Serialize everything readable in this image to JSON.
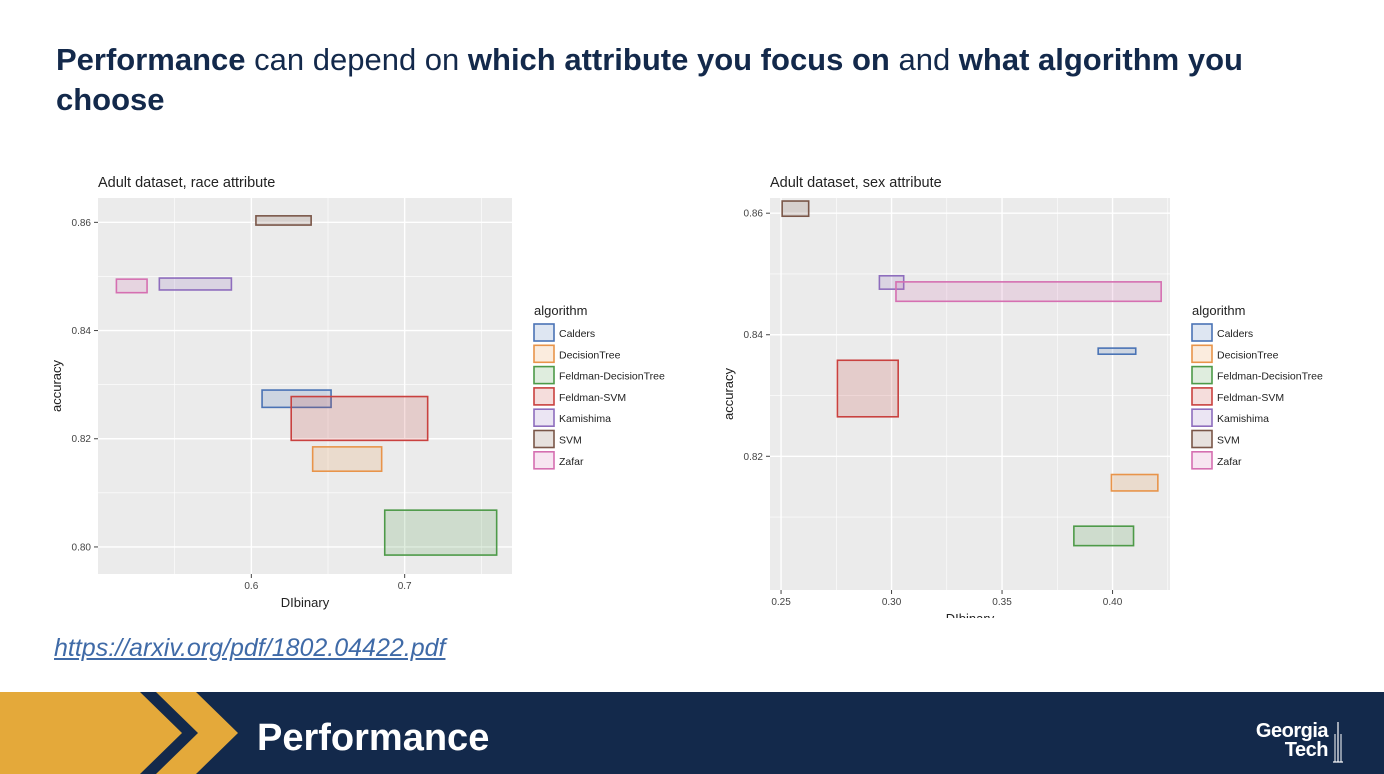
{
  "headline": {
    "p1": "Performance",
    "p2": " can depend on ",
    "p3": "which attribute you focus on",
    "p4": " and ",
    "p5": "what algorithm you choose"
  },
  "link": "https://arxiv.org/pdf/1802.04422.pdf",
  "footer": {
    "title": "Performance",
    "logo_line1": "Georgia",
    "logo_line2": "Tech",
    "colors": {
      "navy": "#13294b",
      "gold": "#e4a93a"
    }
  },
  "chart_data": [
    {
      "type": "rect-range",
      "title": "Adult dataset, race attribute",
      "xlabel": "DIbinary",
      "ylabel": "accuracy",
      "xlim": [
        0.5,
        0.77
      ],
      "ylim": [
        0.795,
        0.8645
      ],
      "xticks": [
        0.6,
        0.7
      ],
      "xtick_labels": [
        "0.6",
        "0.7"
      ],
      "yticks": [
        0.8,
        0.82,
        0.84,
        0.86
      ],
      "ytick_labels": [
        "0.80",
        "0.82",
        "0.84",
        "0.86"
      ],
      "legend": {
        "title": "algorithm",
        "position": "right"
      },
      "series": [
        {
          "name": "Calders",
          "x": [
            0.607,
            0.652
          ],
          "y": [
            0.8258,
            0.829
          ],
          "color": "#4a73b5"
        },
        {
          "name": "DecisionTree",
          "x": [
            0.64,
            0.685
          ],
          "y": [
            0.814,
            0.8185
          ],
          "color": "#e8944a"
        },
        {
          "name": "Feldman-DecisionTree",
          "x": [
            0.687,
            0.76
          ],
          "y": [
            0.7985,
            0.8068
          ],
          "color": "#4d9a48"
        },
        {
          "name": "Feldman-SVM",
          "x": [
            0.626,
            0.715
          ],
          "y": [
            0.8197,
            0.8278
          ],
          "color": "#c9413f"
        },
        {
          "name": "Kamishima",
          "x": [
            0.54,
            0.587
          ],
          "y": [
            0.8475,
            0.8497
          ],
          "color": "#8e6dbd"
        },
        {
          "name": "SVM",
          "x": [
            0.603,
            0.639
          ],
          "y": [
            0.8595,
            0.8612
          ],
          "color": "#7a5648"
        },
        {
          "name": "Zafar",
          "x": [
            0.512,
            0.532
          ],
          "y": [
            0.847,
            0.8495
          ],
          "color": "#d56fb1"
        }
      ]
    },
    {
      "type": "rect-range",
      "title": "Adult dataset, sex attribute",
      "xlabel": "DIbinary",
      "ylabel": "accuracy",
      "xlim": [
        0.245,
        0.426
      ],
      "ylim": [
        0.798,
        0.8625
      ],
      "xticks": [
        0.25,
        0.3,
        0.35,
        0.4
      ],
      "xtick_labels": [
        "0.25",
        "0.30",
        "0.35",
        "0.40"
      ],
      "yticks": [
        0.82,
        0.84,
        0.86
      ],
      "ytick_labels": [
        "0.82",
        "0.84",
        "0.86"
      ],
      "legend": {
        "title": "algorithm",
        "position": "right"
      },
      "series": [
        {
          "name": "Calders",
          "x": [
            0.3935,
            0.4105
          ],
          "y": [
            0.8368,
            0.8378
          ],
          "color": "#4a73b5"
        },
        {
          "name": "DecisionTree",
          "x": [
            0.3995,
            0.4205
          ],
          "y": [
            0.8143,
            0.817
          ],
          "color": "#e8944a"
        },
        {
          "name": "Feldman-DecisionTree",
          "x": [
            0.3825,
            0.4095
          ],
          "y": [
            0.8053,
            0.8085
          ],
          "color": "#4d9a48"
        },
        {
          "name": "Feldman-SVM",
          "x": [
            0.2755,
            0.303
          ],
          "y": [
            0.8265,
            0.8358
          ],
          "color": "#c9413f"
        },
        {
          "name": "Kamishima",
          "x": [
            0.2945,
            0.3055
          ],
          "y": [
            0.8475,
            0.8497
          ],
          "color": "#8e6dbd"
        },
        {
          "name": "SVM",
          "x": [
            0.2505,
            0.2625
          ],
          "y": [
            0.8595,
            0.862
          ],
          "color": "#7a5648"
        },
        {
          "name": "Zafar",
          "x": [
            0.302,
            0.422
          ],
          "y": [
            0.8455,
            0.8487
          ],
          "color": "#d56fb1"
        }
      ]
    }
  ]
}
